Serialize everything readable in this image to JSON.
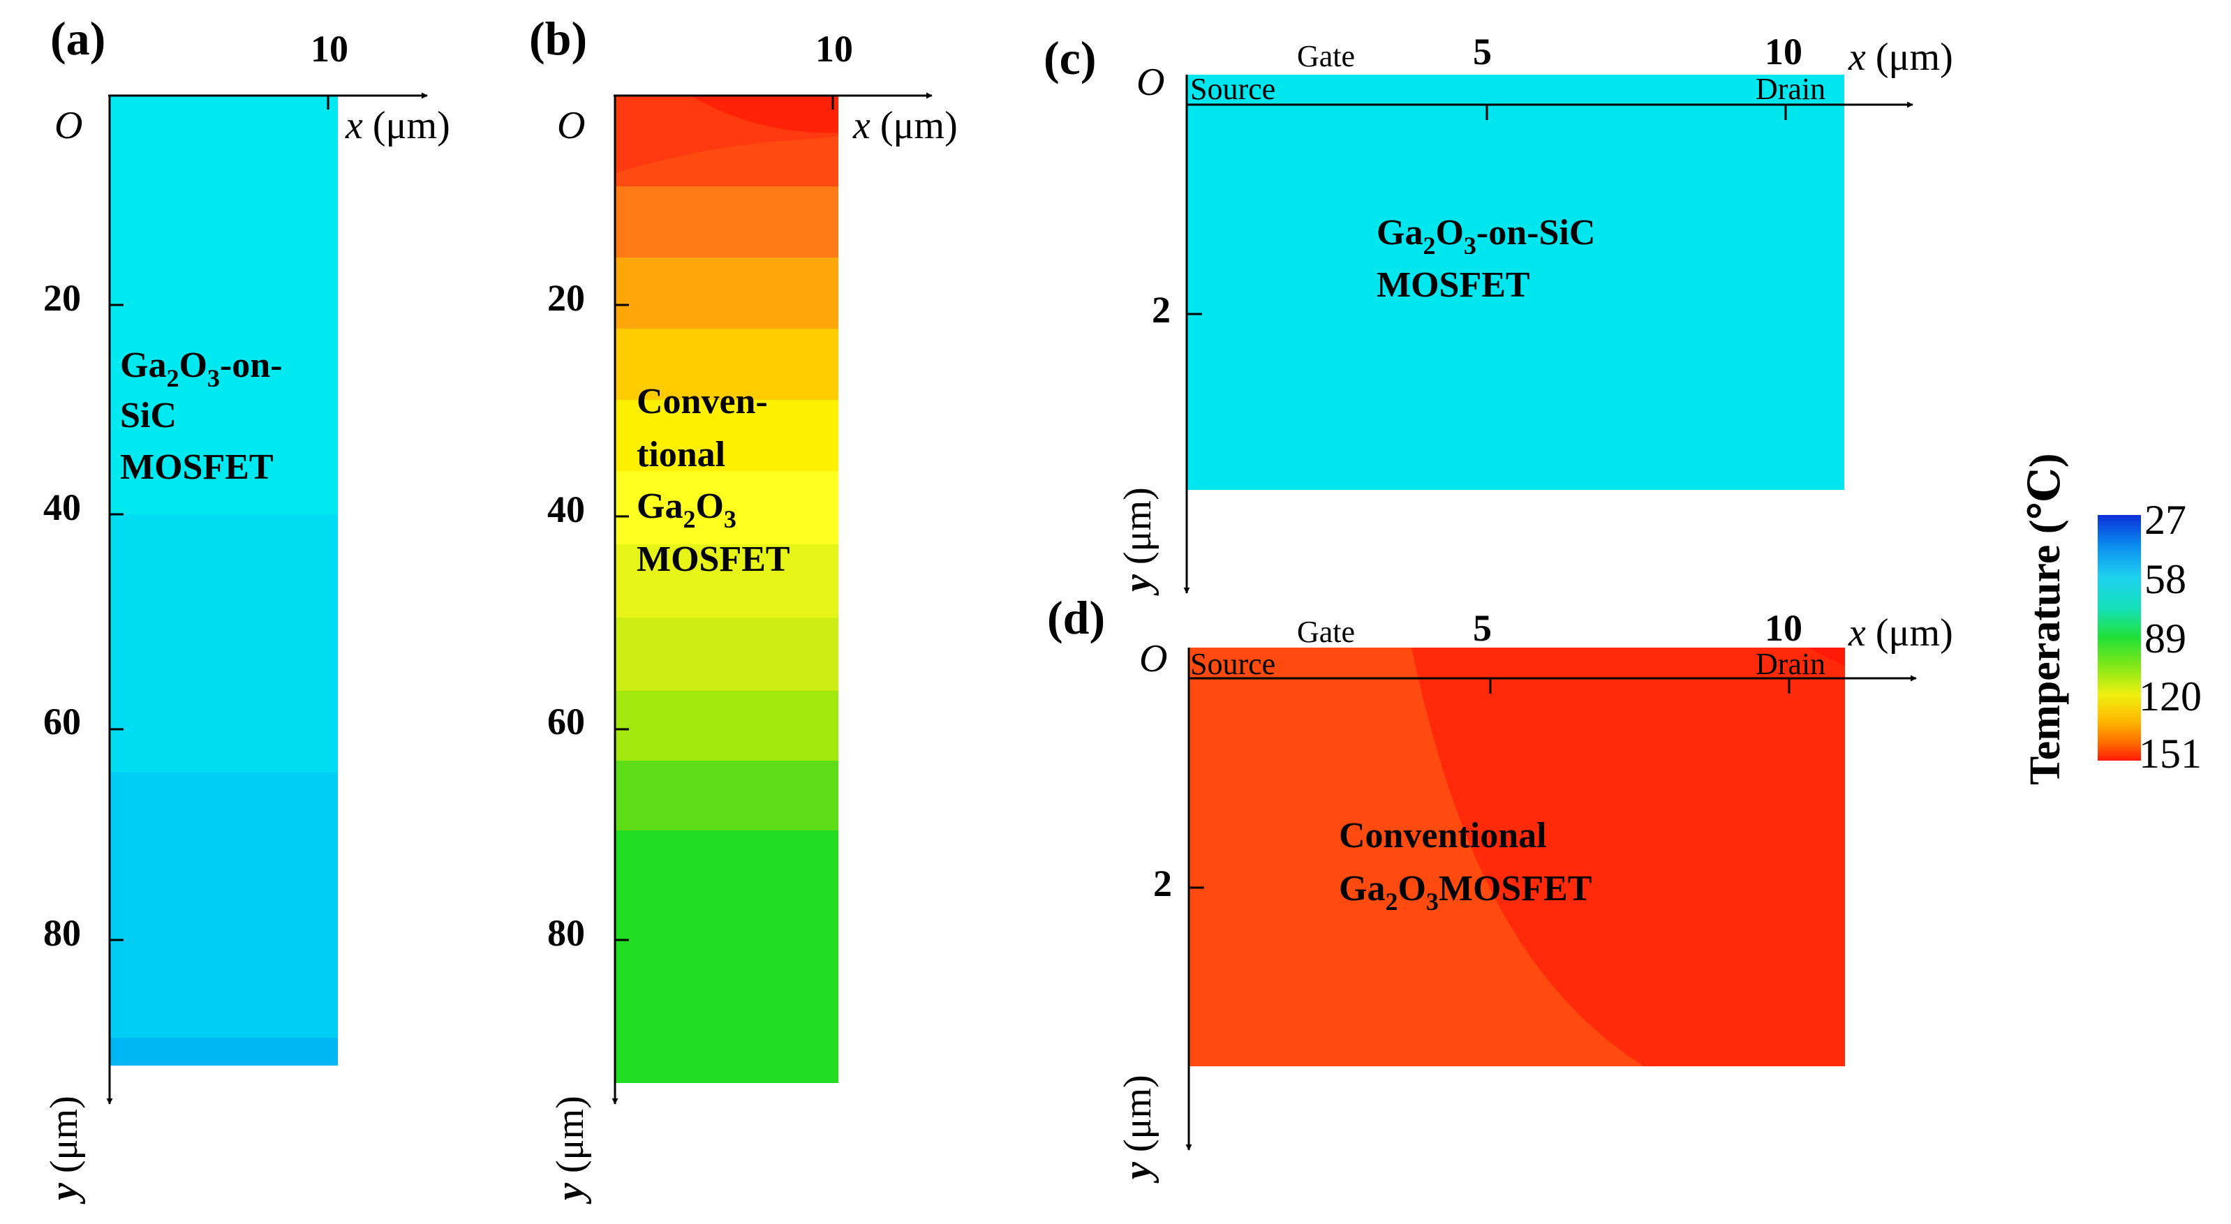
{
  "figure": {
    "panel_a": {
      "label": "(a)",
      "x_tick": "10",
      "origin": "O",
      "x_axis_var": "x",
      "x_axis_unit": " (μm)",
      "y_ticks": [
        "20",
        "40",
        "60",
        "80"
      ],
      "y_axis_var": "y",
      "y_axis_unit": " (μm)",
      "device_lines": [
        "Ga",
        "2",
        "O",
        "3",
        "-on-",
        "SiC",
        "MOSFET"
      ]
    },
    "panel_b": {
      "label": "(b)",
      "x_tick": "10",
      "origin": "O",
      "x_axis_var": "x",
      "x_axis_unit": " (μm)",
      "y_ticks": [
        "20",
        "40",
        "60",
        "80"
      ],
      "y_axis_var": "y",
      "y_axis_unit": " (μm)",
      "device_lines": [
        "Conven-",
        "tional",
        "Ga",
        "2",
        "O",
        "3",
        "MOSFET"
      ]
    },
    "panel_c": {
      "label": "(c)",
      "gate": "Gate",
      "source": "Source",
      "drain": "Drain",
      "x_ticks": [
        "5",
        "10"
      ],
      "origin": "O",
      "x_axis_var": "x",
      "x_axis_unit": " (μm)",
      "y_tick": "2",
      "y_axis_var": "y",
      "y_axis_unit": " (μm)",
      "device_lines": [
        "Ga",
        "2",
        "O",
        "3",
        "-on-SiC",
        "MOSFET"
      ]
    },
    "panel_d": {
      "label": "(d)",
      "gate": "Gate",
      "source": "Source",
      "drain": "Drain",
      "x_ticks": [
        "5",
        "10"
      ],
      "origin": "O",
      "x_axis_var": "x",
      "x_axis_unit": " (μm)",
      "y_tick": "2",
      "y_axis_var": "y",
      "y_axis_unit": " (μm)",
      "device_lines": [
        "Conventional",
        "Ga",
        "2",
        "O",
        "3",
        "MOSFET"
      ]
    },
    "colorbar": {
      "title": "Temperature (℃)",
      "ticks": [
        "27",
        "58",
        "89",
        "120",
        "151"
      ]
    },
    "colors": {
      "cyan_field": "#00e6ef",
      "hot_red": "#ff2a0a",
      "orange_red": "#ff4a10",
      "green": "#1ee01e"
    }
  }
}
